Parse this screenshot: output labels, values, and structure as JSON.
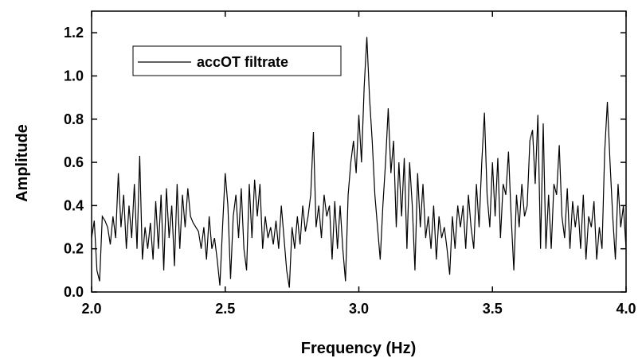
{
  "chart_data": {
    "type": "line",
    "xlabel": "Frequency (Hz)",
    "ylabel": "Amplitude",
    "xlim": [
      2,
      4
    ],
    "ylim": [
      0,
      1.3
    ],
    "xticks": [
      {
        "value": 2,
        "label": "2.0"
      },
      2.5,
      {
        "value": 3,
        "label": "3.0"
      },
      3.5,
      {
        "value": 4,
        "label": "4.0"
      }
    ],
    "yticks": [
      {
        "value": 0,
        "label": "0.0"
      },
      0.2,
      0.4,
      0.6,
      0.8,
      {
        "value": 1,
        "label": "1.0"
      },
      1.2
    ],
    "legend": "upper left",
    "x": [
      2,
      2.01,
      2.02,
      2.03,
      2.04,
      2.05,
      2.06,
      2.07,
      2.08,
      2.09,
      2.1,
      2.11,
      2.12,
      2.13,
      2.14,
      2.15,
      2.16,
      2.17,
      2.18,
      2.19,
      2.2,
      2.21,
      2.22,
      2.23,
      2.24,
      2.25,
      2.26,
      2.27,
      2.28,
      2.29,
      2.3,
      2.31,
      2.32,
      2.33,
      2.34,
      2.35,
      2.36,
      2.37,
      2.38,
      2.39,
      2.4,
      2.41,
      2.42,
      2.43,
      2.44,
      2.45,
      2.46,
      2.47,
      2.48,
      2.49,
      2.5,
      2.51,
      2.52,
      2.53,
      2.54,
      2.55,
      2.56,
      2.57,
      2.58,
      2.59,
      2.6,
      2.61,
      2.62,
      2.63,
      2.64,
      2.65,
      2.66,
      2.67,
      2.68,
      2.69,
      2.7,
      2.71,
      2.72,
      2.73,
      2.74,
      2.75,
      2.76,
      2.77,
      2.78,
      2.79,
      2.8,
      2.81,
      2.82,
      2.83,
      2.84,
      2.85,
      2.86,
      2.87,
      2.88,
      2.89,
      2.9,
      2.91,
      2.92,
      2.93,
      2.94,
      2.95,
      2.96,
      2.97,
      2.98,
      2.99,
      3,
      3.01,
      3.02,
      3.03,
      3.04,
      3.05,
      3.06,
      3.07,
      3.08,
      3.09,
      3.1,
      3.11,
      3.12,
      3.13,
      3.14,
      3.15,
      3.16,
      3.17,
      3.18,
      3.19,
      3.2,
      3.21,
      3.22,
      3.23,
      3.24,
      3.25,
      3.26,
      3.27,
      3.28,
      3.29,
      3.3,
      3.31,
      3.32,
      3.33,
      3.34,
      3.35,
      3.36,
      3.37,
      3.38,
      3.39,
      3.4,
      3.41,
      3.42,
      3.43,
      3.44,
      3.45,
      3.46,
      3.47,
      3.48,
      3.49,
      3.5,
      3.51,
      3.52,
      3.53,
      3.54,
      3.55,
      3.56,
      3.57,
      3.58,
      3.59,
      3.6,
      3.61,
      3.62,
      3.63,
      3.64,
      3.65,
      3.66,
      3.67,
      3.68,
      3.69,
      3.7,
      3.71,
      3.72,
      3.73,
      3.74,
      3.75,
      3.76,
      3.77,
      3.78,
      3.79,
      3.8,
      3.81,
      3.82,
      3.83,
      3.84,
      3.85,
      3.86,
      3.87,
      3.88,
      3.89,
      3.9,
      3.91,
      3.92,
      3.93,
      3.94,
      3.95,
      3.96,
      3.97,
      3.98,
      3.99,
      4
    ],
    "series": [
      {
        "name": "accOT filtrate",
        "color": "#000000",
        "values": [
          0.25,
          0.33,
          0.1,
          0.05,
          0.35,
          0.33,
          0.3,
          0.22,
          0.35,
          0.25,
          0.55,
          0.3,
          0.45,
          0.2,
          0.4,
          0.25,
          0.5,
          0.2,
          0.63,
          0.15,
          0.3,
          0.2,
          0.32,
          0.15,
          0.42,
          0.2,
          0.45,
          0.1,
          0.48,
          0.25,
          0.4,
          0.12,
          0.5,
          0.2,
          0.45,
          0.3,
          0.48,
          0.35,
          0.32,
          0.3,
          0.28,
          0.2,
          0.3,
          0.15,
          0.35,
          0.2,
          0.25,
          0.15,
          0.03,
          0.3,
          0.55,
          0.4,
          0.06,
          0.35,
          0.45,
          0.25,
          0.48,
          0.2,
          0.1,
          0.5,
          0.25,
          0.52,
          0.35,
          0.5,
          0.2,
          0.35,
          0.25,
          0.3,
          0.22,
          0.33,
          0.2,
          0.4,
          0.25,
          0.1,
          0.02,
          0.3,
          0.2,
          0.35,
          0.22,
          0.4,
          0.28,
          0.35,
          0.45,
          0.74,
          0.3,
          0.4,
          0.25,
          0.45,
          0.35,
          0.4,
          0.15,
          0.42,
          0.2,
          0.4,
          0.2,
          0.05,
          0.45,
          0.6,
          0.7,
          0.55,
          0.82,
          0.6,
          0.95,
          1.18,
          0.9,
          0.7,
          0.45,
          0.3,
          0.15,
          0.4,
          0.6,
          0.85,
          0.55,
          0.7,
          0.3,
          0.6,
          0.35,
          0.62,
          0.2,
          0.6,
          0.4,
          0.1,
          0.55,
          0.3,
          0.5,
          0.25,
          0.35,
          0.2,
          0.4,
          0.15,
          0.35,
          0.25,
          0.3,
          0.2,
          0.08,
          0.35,
          0.2,
          0.4,
          0.3,
          0.4,
          0.2,
          0.45,
          0.3,
          0.2,
          0.5,
          0.3,
          0.6,
          0.83,
          0.45,
          0.3,
          0.6,
          0.35,
          0.62,
          0.25,
          0.5,
          0.45,
          0.65,
          0.35,
          0.1,
          0.45,
          0.3,
          0.5,
          0.35,
          0.4,
          0.7,
          0.75,
          0.5,
          0.82,
          0.2,
          0.78,
          0.2,
          0.45,
          0.2,
          0.5,
          0.45,
          0.68,
          0.35,
          0.25,
          0.48,
          0.2,
          0.42,
          0.3,
          0.4,
          0.2,
          0.45,
          0.15,
          0.35,
          0.3,
          0.42,
          0.15,
          0.3,
          0.2,
          0.65,
          0.88,
          0.6,
          0.35,
          0.15,
          0.5,
          0.3,
          0.4,
          0.2
        ]
      }
    ]
  }
}
